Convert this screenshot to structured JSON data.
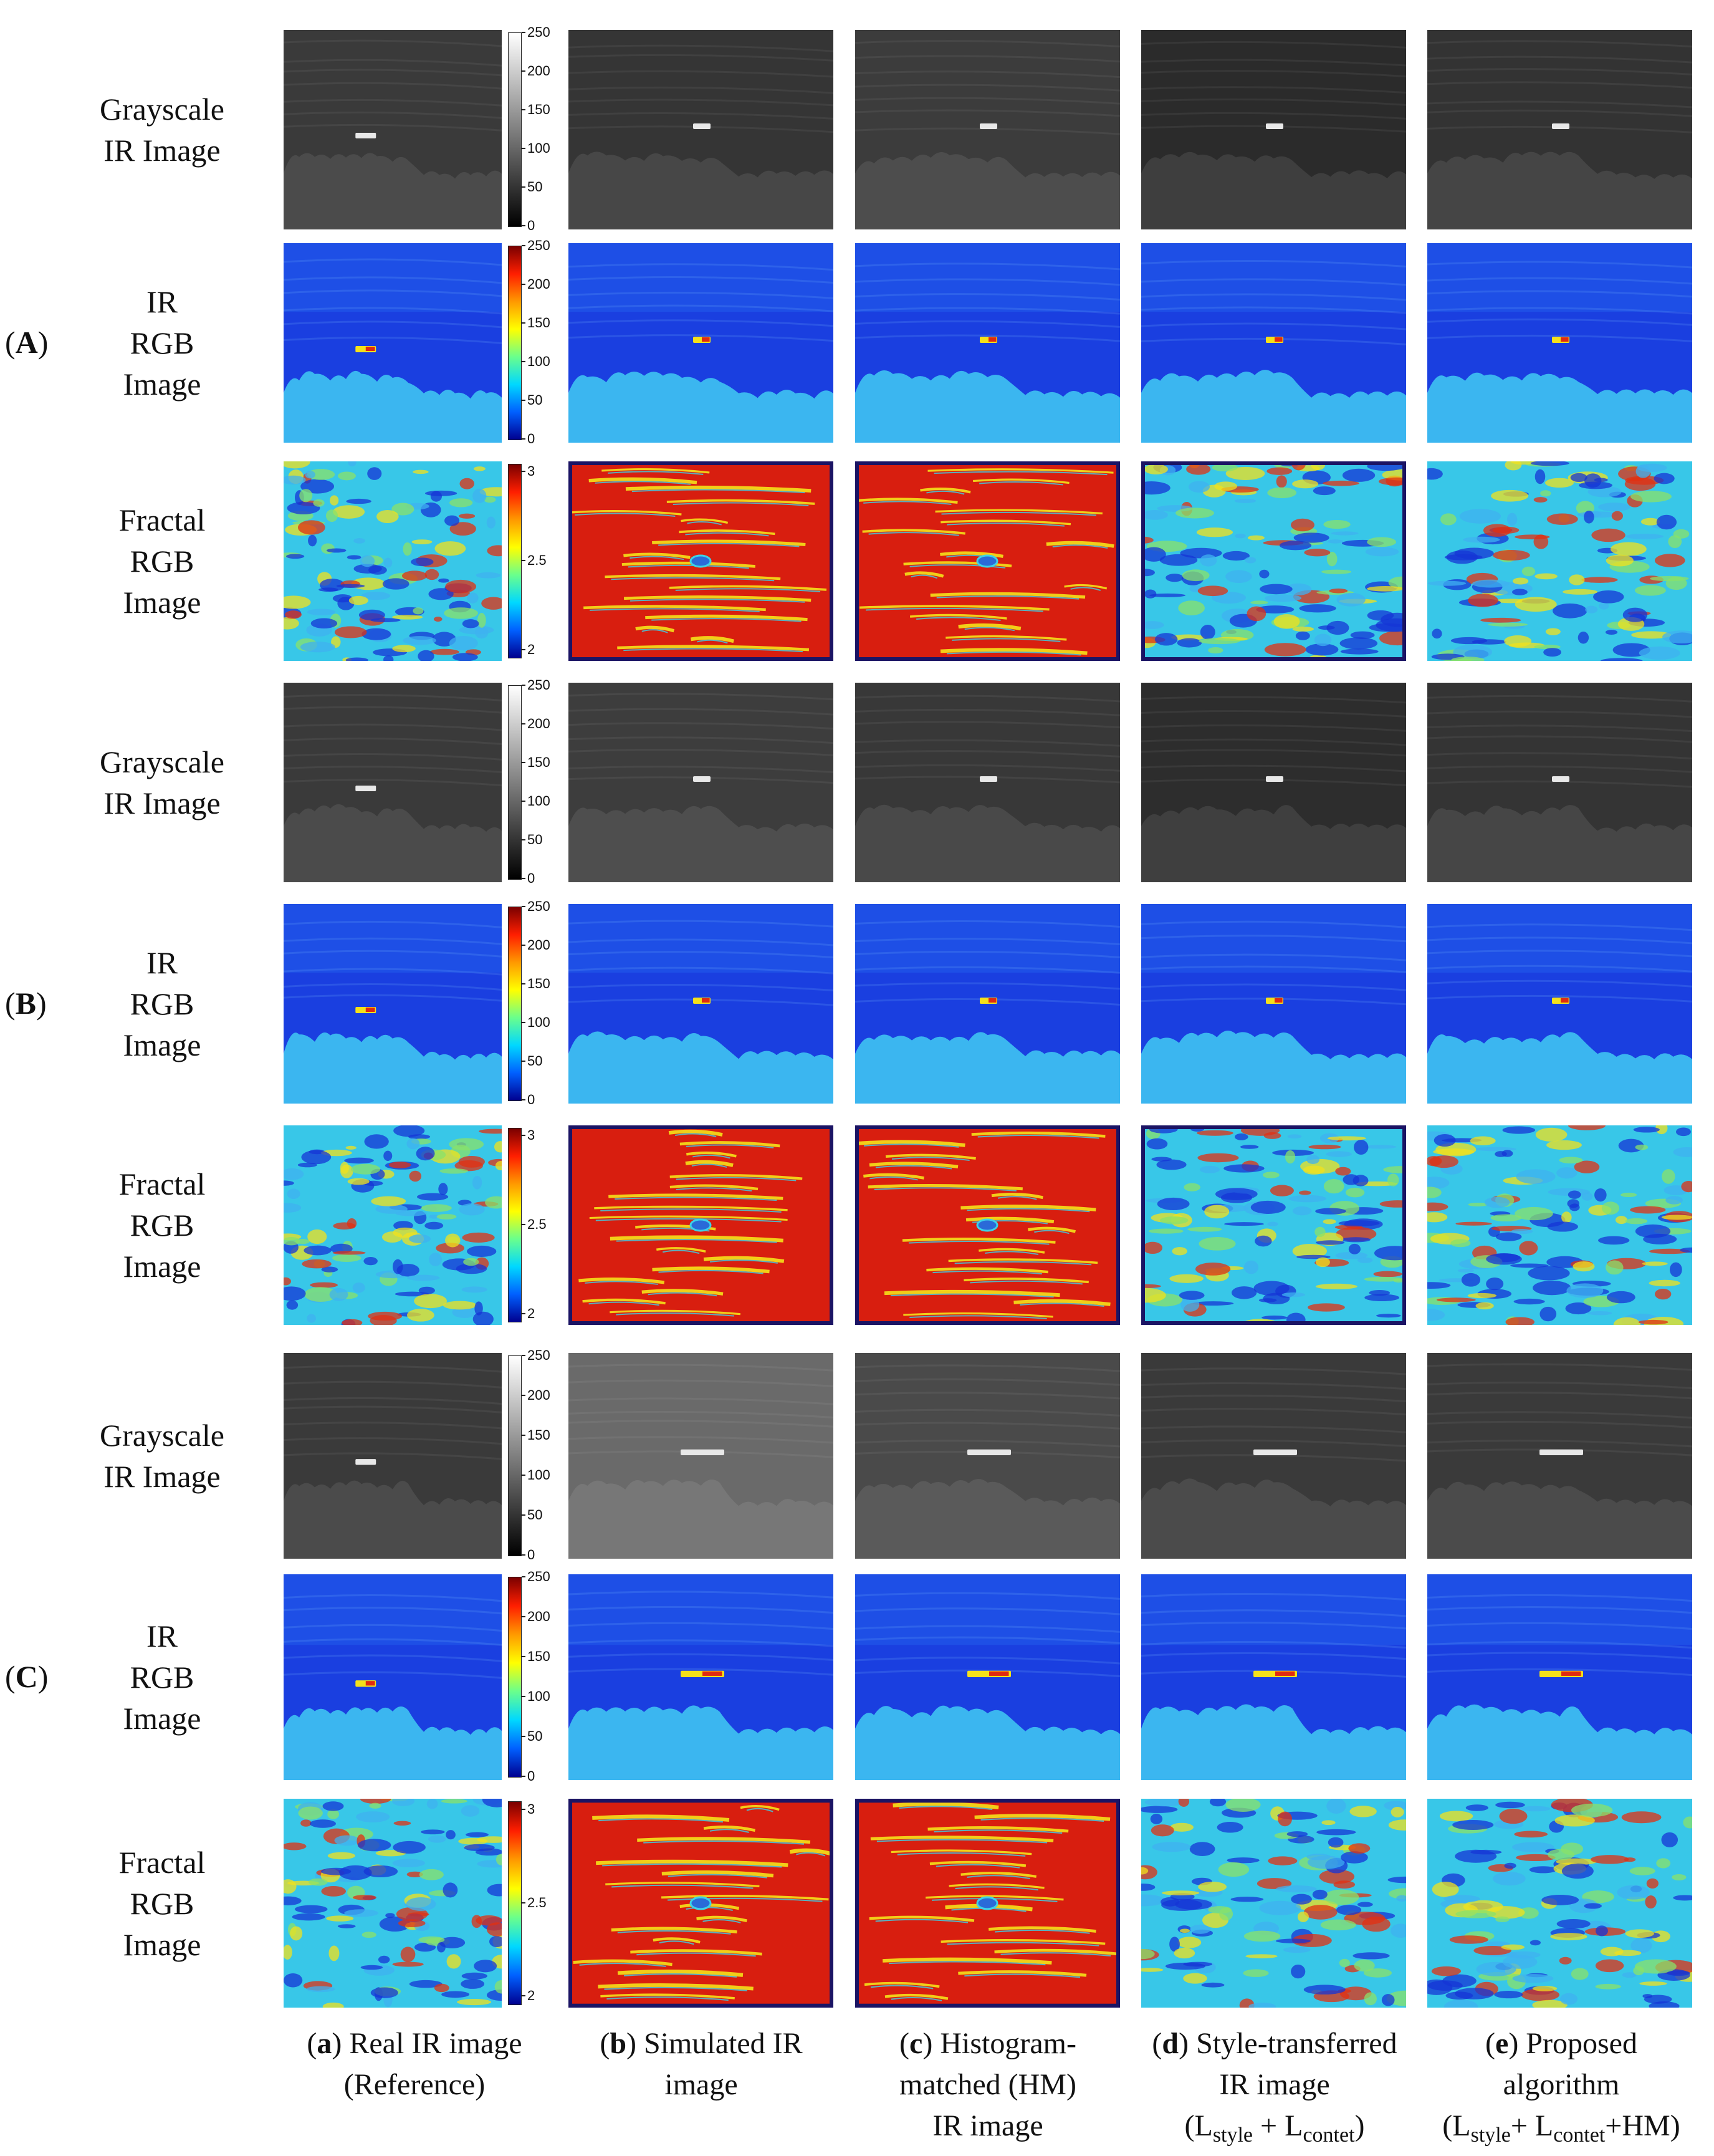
{
  "group_labels": [
    {
      "open": "(",
      "letter": "A",
      "close": ")"
    },
    {
      "open": "(",
      "letter": "B",
      "close": ")"
    },
    {
      "open": "(",
      "letter": "C",
      "close": ")"
    }
  ],
  "row_types": {
    "grayscale": [
      "Grayscale",
      "IR Image"
    ],
    "ir_rgb": [
      "IR",
      "RGB",
      "Image"
    ],
    "fractal": [
      "Fractal",
      "RGB",
      "Image"
    ]
  },
  "colorbars": {
    "intensity_ticks": [
      "250",
      "200",
      "150",
      "100",
      "50",
      "0"
    ],
    "fractal_ticks": [
      "3",
      "2.5",
      "2"
    ]
  },
  "columns": [
    {
      "paren_open": "(",
      "letter": "a",
      "paren_close": ")",
      "rest": " Real IR image",
      "line2": "(Reference)"
    },
    {
      "paren_open": "(",
      "letter": "b",
      "paren_close": ")",
      "rest": " Simulated IR",
      "line2": "image"
    },
    {
      "paren_open": "(",
      "letter": "c",
      "paren_close": ")",
      "rest": " Histogram-",
      "line2": "matched (HM)",
      "line3": "IR image"
    },
    {
      "paren_open": "(",
      "letter": "d",
      "paren_close": ")",
      "rest": " Style-transferred",
      "line2": "IR image",
      "formula": {
        "open": "(",
        "l1": "L",
        "s1": "style",
        "plus": " + ",
        "l2": "L",
        "s2": "contet",
        "close": ")"
      }
    },
    {
      "paren_open": "(",
      "letter": "e",
      "paren_close": ")",
      "rest": " Proposed",
      "line2": "algorithm",
      "formula": {
        "open": "(",
        "l1": "L",
        "s1": "style",
        "plus": "+ ",
        "l2": "L",
        "s2": "contet",
        "close": "+HM)"
      }
    }
  ],
  "colors": {
    "gray_bg": "#2e2e2e",
    "blue_bg": "#1a3fe0",
    "cyan_land": "#3fc3f2",
    "red_fractal": "#d81e0f",
    "yellow": "#f5e11a",
    "frame_navy": "#1b1464"
  }
}
